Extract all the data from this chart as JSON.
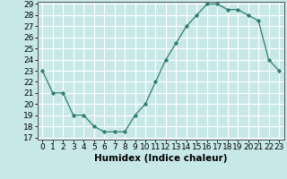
{
  "x": [
    0,
    1,
    2,
    3,
    4,
    5,
    6,
    7,
    8,
    9,
    10,
    11,
    12,
    13,
    14,
    15,
    16,
    17,
    18,
    19,
    20,
    21,
    22,
    23
  ],
  "y": [
    23,
    21,
    21,
    19,
    19,
    18,
    17.5,
    17.5,
    17.5,
    19,
    20,
    22,
    24,
    25.5,
    27,
    28,
    29,
    29,
    28.5,
    28.5,
    28,
    27.5,
    24,
    23
  ],
  "line_color": "#2e7f6e",
  "marker_color": "#2e7f6e",
  "bg_color": "#c8e8e8",
  "grid_color": "#ffffff",
  "xlabel": "Humidex (Indice chaleur)",
  "ylim_min": 17,
  "ylim_max": 29,
  "yticks": [
    17,
    18,
    19,
    20,
    21,
    22,
    23,
    24,
    25,
    26,
    27,
    28,
    29
  ],
  "xticks": [
    0,
    1,
    2,
    3,
    4,
    5,
    6,
    7,
    8,
    9,
    10,
    11,
    12,
    13,
    14,
    15,
    16,
    17,
    18,
    19,
    20,
    21,
    22,
    23
  ],
  "xlabel_fontsize": 7.5,
  "tick_fontsize": 6.5
}
